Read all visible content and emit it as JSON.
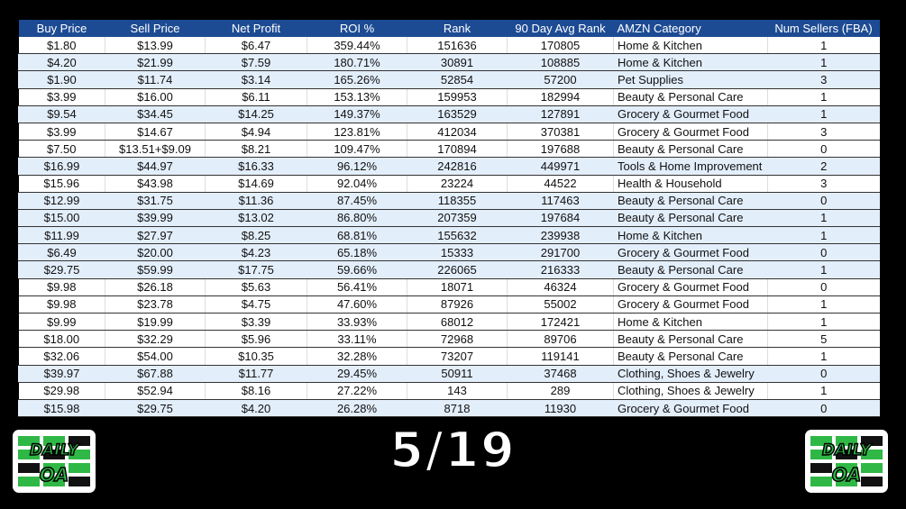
{
  "table": {
    "headers": [
      "Buy Price",
      "Sell Price",
      "Net Profit",
      "ROI %",
      "Rank",
      "90 Day Avg Rank",
      "AMZN Category",
      "Num Sellers (FBA)"
    ],
    "rows": [
      {
        "shaded": false,
        "cells": [
          "$1.80",
          "$13.99",
          "$6.47",
          "359.44%",
          "151636",
          "170805",
          "Home & Kitchen",
          "1"
        ]
      },
      {
        "shaded": true,
        "cells": [
          "$4.20",
          "$21.99",
          "$7.59",
          "180.71%",
          "30891",
          "108885",
          "Home & Kitchen",
          "1"
        ]
      },
      {
        "shaded": true,
        "cells": [
          "$1.90",
          "$11.74",
          "$3.14",
          "165.26%",
          "52854",
          "57200",
          "Pet Supplies",
          "3"
        ]
      },
      {
        "shaded": false,
        "cells": [
          "$3.99",
          "$16.00",
          "$6.11",
          "153.13%",
          "159953",
          "182994",
          "Beauty & Personal Care",
          "1"
        ]
      },
      {
        "shaded": true,
        "cells": [
          "$9.54",
          "$34.45",
          "$14.25",
          "149.37%",
          "163529",
          "127891",
          "Grocery & Gourmet Food",
          "1"
        ]
      },
      {
        "shaded": false,
        "cells": [
          "$3.99",
          "$14.67",
          "$4.94",
          "123.81%",
          "412034",
          "370381",
          "Grocery & Gourmet Food",
          "3"
        ]
      },
      {
        "shaded": false,
        "cells": [
          "$7.50",
          "$13.51+$9.09",
          "$8.21",
          "109.47%",
          "170894",
          "197688",
          "Beauty & Personal Care",
          "0"
        ]
      },
      {
        "shaded": true,
        "cells": [
          "$16.99",
          "$44.97",
          "$16.33",
          "96.12%",
          "242816",
          "449971",
          "Tools & Home Improvement",
          "2"
        ]
      },
      {
        "shaded": false,
        "cells": [
          "$15.96",
          "$43.98",
          "$14.69",
          "92.04%",
          "23224",
          "44522",
          "Health & Household",
          "3"
        ]
      },
      {
        "shaded": true,
        "cells": [
          "$12.99",
          "$31.75",
          "$11.36",
          "87.45%",
          "118355",
          "117463",
          "Beauty & Personal Care",
          "0"
        ]
      },
      {
        "shaded": true,
        "cells": [
          "$15.00",
          "$39.99",
          "$13.02",
          "86.80%",
          "207359",
          "197684",
          "Beauty & Personal Care",
          "1"
        ]
      },
      {
        "shaded": true,
        "cells": [
          "$11.99",
          "$27.97",
          "$8.25",
          "68.81%",
          "155632",
          "239938",
          "Home & Kitchen",
          "1"
        ]
      },
      {
        "shaded": true,
        "cells": [
          "$6.49",
          "$20.00",
          "$4.23",
          "65.18%",
          "15333",
          "291700",
          "Grocery & Gourmet Food",
          "0"
        ]
      },
      {
        "shaded": true,
        "cells": [
          "$29.75",
          "$59.99",
          "$17.75",
          "59.66%",
          "226065",
          "216333",
          "Beauty & Personal Care",
          "1"
        ]
      },
      {
        "shaded": false,
        "cells": [
          "$9.98",
          "$26.18",
          "$5.63",
          "56.41%",
          "18071",
          "46324",
          "Grocery & Gourmet Food",
          "0"
        ]
      },
      {
        "shaded": false,
        "cells": [
          "$9.98",
          "$23.78",
          "$4.75",
          "47.60%",
          "87926",
          "55002",
          "Grocery & Gourmet Food",
          "1"
        ]
      },
      {
        "shaded": false,
        "cells": [
          "$9.99",
          "$19.99",
          "$3.39",
          "33.93%",
          "68012",
          "172421",
          "Home & Kitchen",
          "1"
        ]
      },
      {
        "shaded": false,
        "cells": [
          "$18.00",
          "$32.29",
          "$5.96",
          "33.11%",
          "72968",
          "89706",
          "Beauty & Personal Care",
          "5"
        ]
      },
      {
        "shaded": false,
        "cells": [
          "$32.06",
          "$54.00",
          "$10.35",
          "32.28%",
          "73207",
          "119141",
          "Beauty & Personal Care",
          "1"
        ]
      },
      {
        "shaded": true,
        "cells": [
          "$39.97",
          "$67.88",
          "$11.77",
          "29.45%",
          "50911",
          "37468",
          "Clothing, Shoes & Jewelry",
          "0"
        ]
      },
      {
        "shaded": false,
        "cells": [
          "$29.98",
          "$52.94",
          "$8.16",
          "27.22%",
          "143",
          "289",
          "Clothing, Shoes & Jewelry",
          "1"
        ]
      },
      {
        "shaded": true,
        "cells": [
          "$15.98",
          "$29.75",
          "$4.20",
          "26.28%",
          "8718",
          "11930",
          "Grocery & Gourmet Food",
          "0"
        ]
      }
    ]
  },
  "date_label": "5/19",
  "logo": {
    "text_line1": "DAILY",
    "text_line2": "OA",
    "accent": "#2fb845"
  },
  "colors": {
    "header_bg": "#1d4b93",
    "shaded_row": "#e3eefb"
  }
}
